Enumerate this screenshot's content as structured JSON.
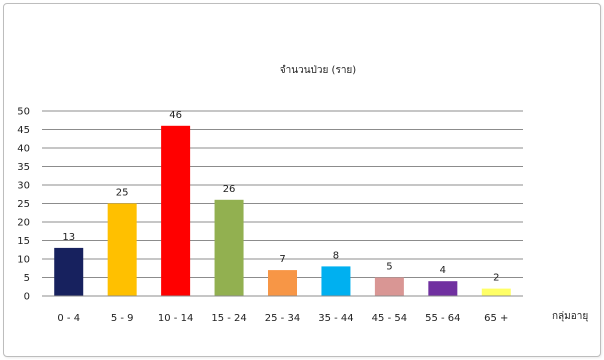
{
  "chart_data": {
    "type": "bar",
    "title": "จำนวนป่วย (ราย)",
    "xlabel": "กลุ่มอายุ",
    "ylabel": "",
    "ylim": [
      0,
      50
    ],
    "yticks": [
      0,
      5,
      10,
      15,
      20,
      25,
      30,
      35,
      40,
      45,
      50
    ],
    "grid": true,
    "legend": "none",
    "categories": [
      "0 - 4",
      "5 - 9",
      "10 - 14",
      "15 - 24",
      "25 - 34",
      "35 - 44",
      "45 - 54",
      "55 - 64",
      "65 +"
    ],
    "values": [
      13,
      25,
      46,
      26,
      7,
      8,
      5,
      4,
      2
    ],
    "colors": [
      "#17215e",
      "#ffc000",
      "#ff0000",
      "#92b050",
      "#f79646",
      "#00b0f0",
      "#d99694",
      "#7030a0",
      "#ffff66"
    ]
  }
}
